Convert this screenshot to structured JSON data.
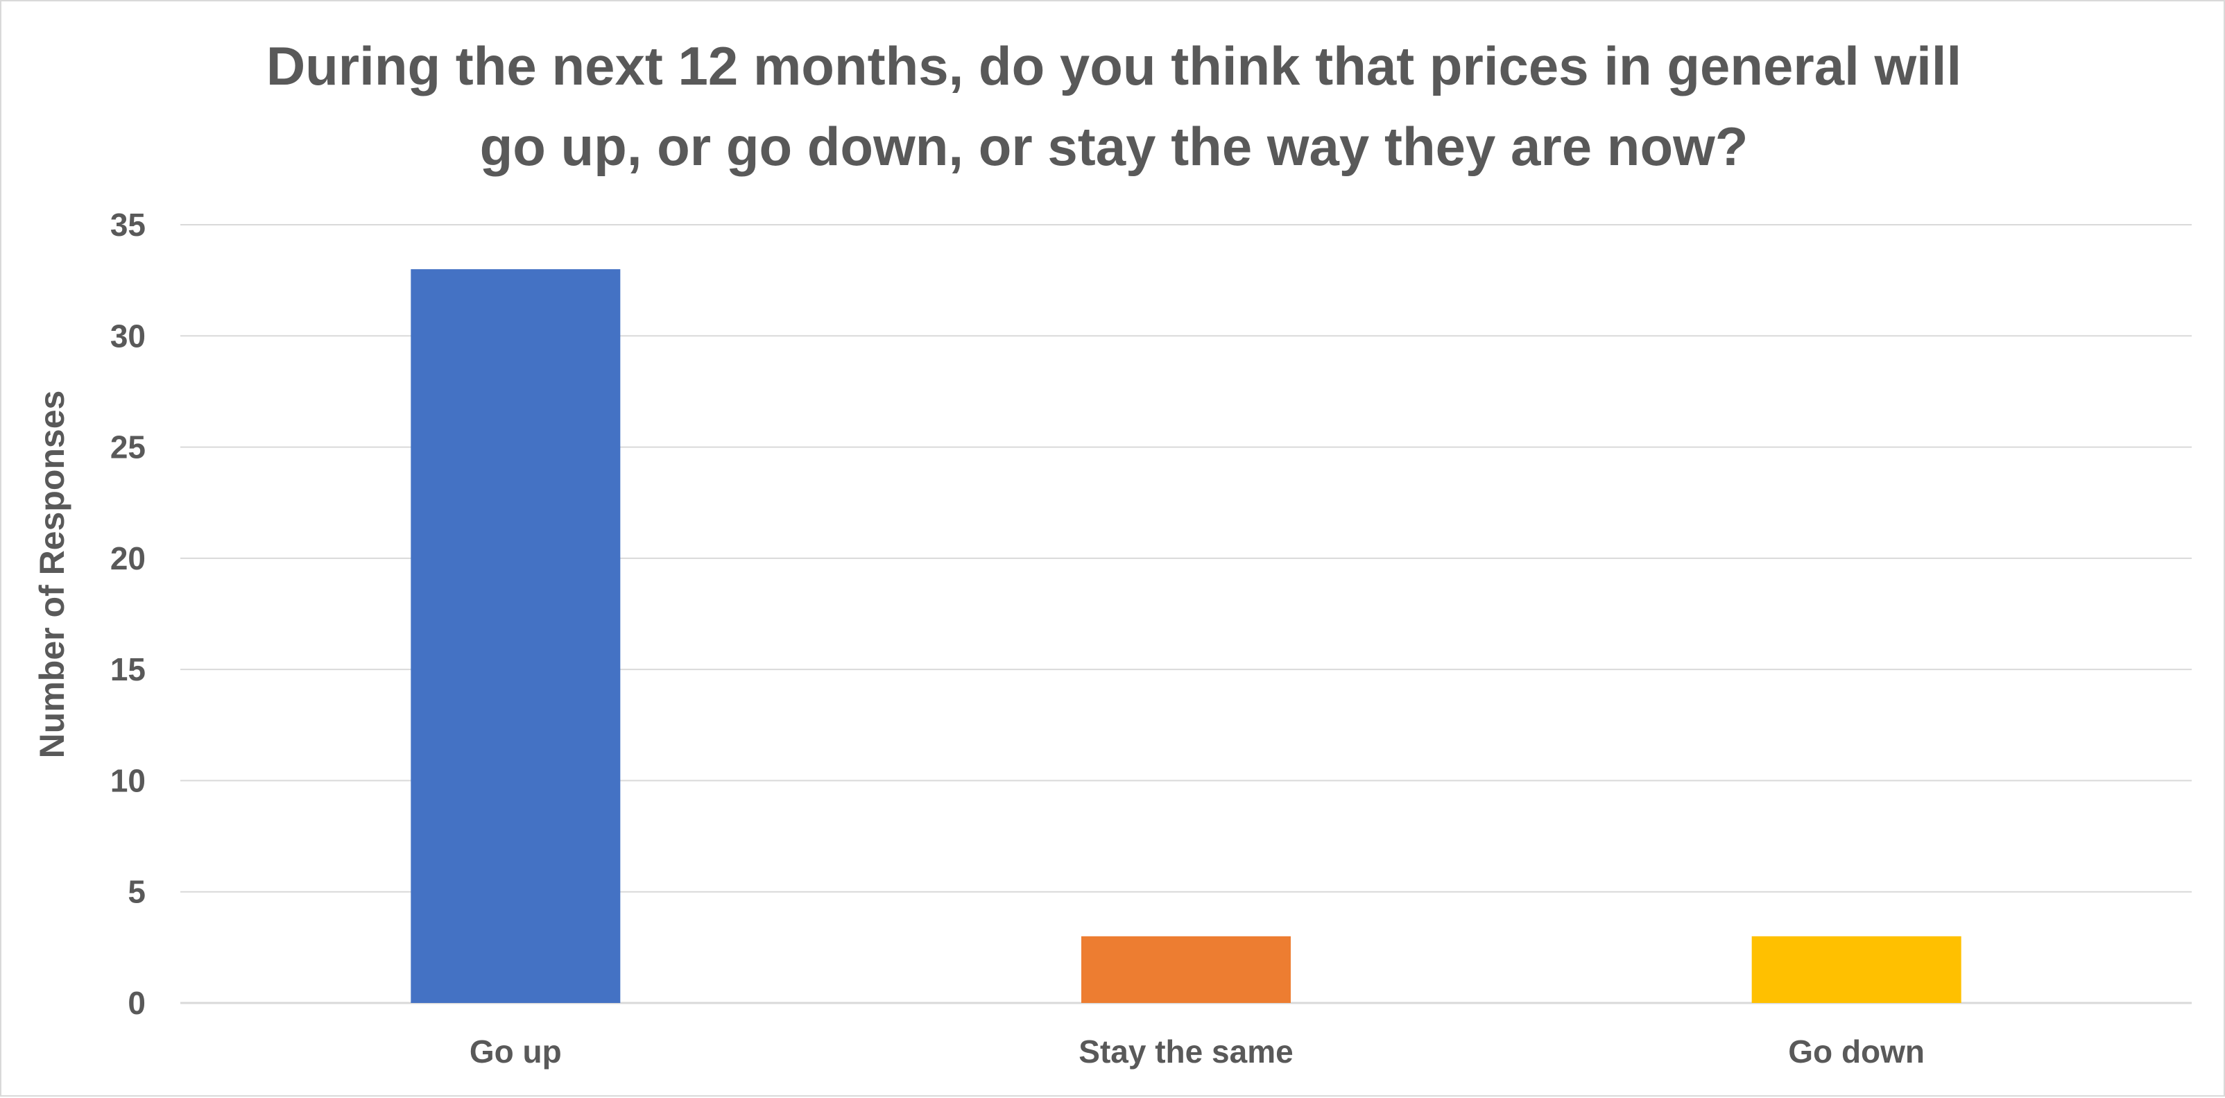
{
  "chart_data": {
    "type": "bar",
    "title_lines": [
      "During the next 12 months, do you think that prices in general will",
      "go up, or go down, or stay the way they are now?"
    ],
    "title": "During the next 12 months, do you think that prices in general will go up, or go down, or stay the way they are now?",
    "xlabel": "",
    "ylabel": "Number of Responses",
    "categories": [
      "Go up",
      "Stay the same",
      "Go down"
    ],
    "values": [
      33,
      3,
      3
    ],
    "bar_colors": [
      "#4472C4",
      "#ED7D31",
      "#FFC000"
    ],
    "ylim": [
      0,
      35
    ],
    "yticks": [
      0,
      5,
      10,
      15,
      20,
      25,
      30,
      35
    ],
    "grid": true,
    "legend": "none"
  }
}
